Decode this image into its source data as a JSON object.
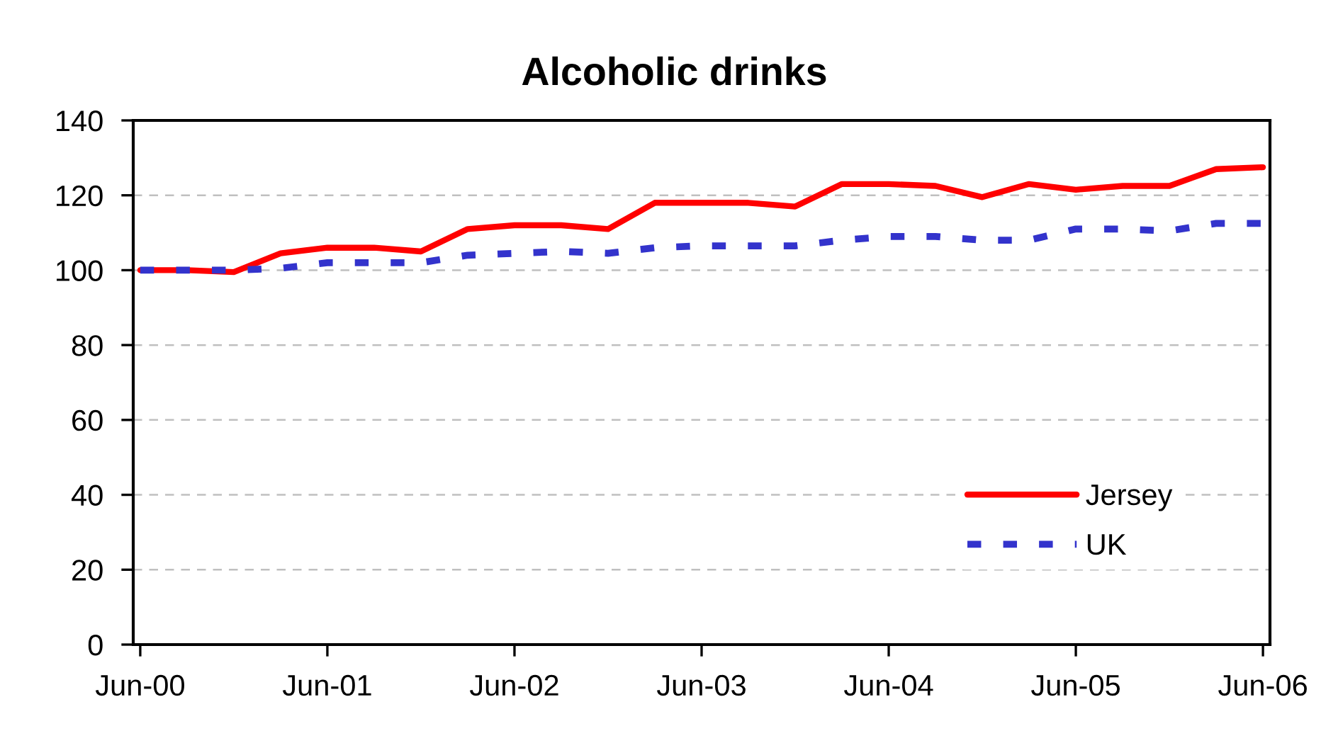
{
  "chart_data": {
    "type": "line",
    "title": "Alcoholic drinks",
    "categories": [
      "Jun-00",
      null,
      null,
      null,
      "Jun-01",
      null,
      null,
      null,
      "Jun-02",
      null,
      null,
      null,
      "Jun-03",
      null,
      null,
      null,
      "Jun-04",
      null,
      null,
      null,
      "Jun-05",
      null,
      null,
      null,
      "Jun-06"
    ],
    "series": [
      {
        "name": "Jersey",
        "color": "#ff0000",
        "line_style": "solid",
        "values": [
          100,
          100,
          99.5,
          104.5,
          106,
          106,
          105,
          111,
          112,
          112,
          111,
          118,
          118,
          118,
          117,
          123,
          123,
          122.5,
          119.5,
          123,
          121.5,
          122.5,
          122.5,
          127,
          127.5
        ]
      },
      {
        "name": "UK",
        "color": "#3333cc",
        "line_style": "dashed",
        "values": [
          100,
          100,
          100,
          100.5,
          102,
          102,
          102,
          104,
          104.5,
          105,
          104.5,
          106,
          106.5,
          106.5,
          106.5,
          108,
          109,
          109,
          108,
          108,
          111,
          111,
          110.5,
          112.5,
          112.5
        ]
      }
    ],
    "ylim": [
      0,
      140
    ],
    "yticks": [
      0,
      20,
      40,
      60,
      80,
      100,
      120,
      140
    ],
    "grid": "y",
    "legend": "bottom right"
  }
}
